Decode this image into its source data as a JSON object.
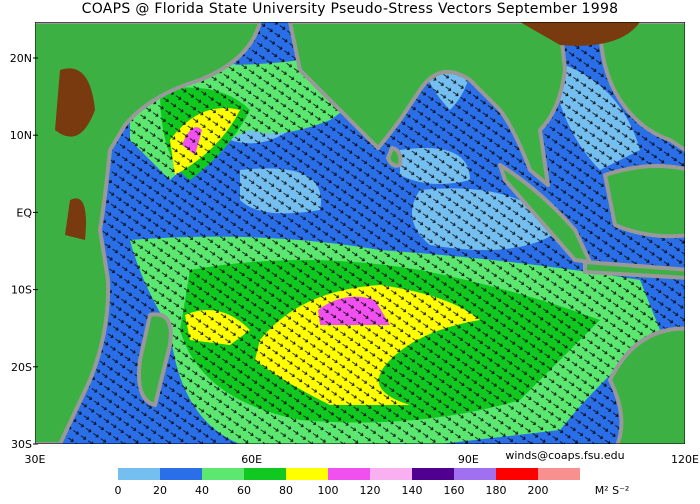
{
  "header": {
    "title": "COAPS @ Florida State University Pseudo-Stress Vectors  September 1998"
  },
  "map": {
    "lat_labels": [
      "20N",
      "10N",
      "EQ",
      "10S",
      "20S",
      "30S"
    ],
    "lon_labels": [
      "30E",
      "60E",
      "90E",
      "120E"
    ],
    "credit": "winds@coaps.fsu.edu"
  },
  "colorbar": {
    "ticks": [
      0,
      20,
      40,
      60,
      80,
      100,
      120,
      140,
      160,
      180,
      200
    ],
    "colors": [
      "#74bff0",
      "#2a6fe8",
      "#5ce870",
      "#10c820",
      "#ffff00",
      "#f050f0",
      "#f8b0f0",
      "#500090",
      "#a070f0",
      "#ff0000",
      "#f89090"
    ],
    "units": "M² S⁻²"
  }
}
